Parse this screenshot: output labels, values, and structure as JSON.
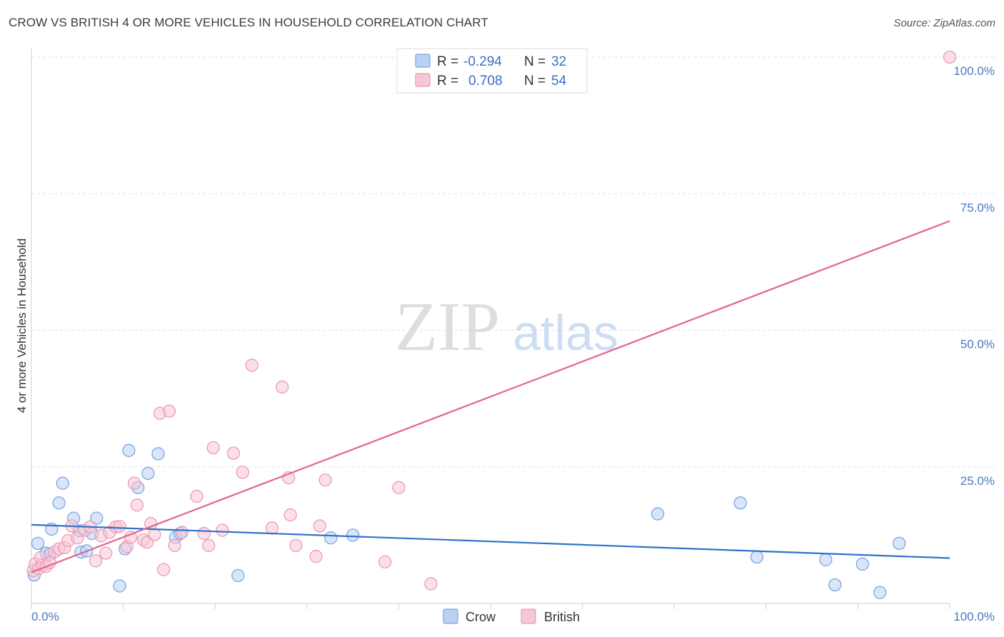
{
  "title": "CROW VS BRITISH 4 OR MORE VEHICLES IN HOUSEHOLD CORRELATION CHART",
  "source": "Source: ZipAtlas.com",
  "watermark": {
    "zip": "ZIP",
    "atlas": "atlas"
  },
  "legend": {
    "rows": [
      {
        "r_label": "R =",
        "r_value": "-0.294",
        "n_label": "N =",
        "n_value": "32"
      },
      {
        "r_label": "R =",
        "r_value": "0.708",
        "n_label": "N =",
        "n_value": "54"
      }
    ]
  },
  "bottom_legend": [
    "Crow",
    "British"
  ],
  "chart_data": {
    "type": "scatter",
    "title": "CROW VS BRITISH 4 OR MORE VEHICLES IN HOUSEHOLD CORRELATION CHART",
    "xlabel": "",
    "ylabel": "4 or more Vehicles in Household",
    "xlim": [
      0,
      100
    ],
    "ylim": [
      0,
      100
    ],
    "x_tick_labels": [
      {
        "value": 0,
        "label": "0.0%"
      },
      {
        "value": 100,
        "label": "100.0%"
      }
    ],
    "y_tick_labels": [
      {
        "value": 25,
        "label": "25.0%"
      },
      {
        "value": 50,
        "label": "50.0%"
      },
      {
        "value": 75,
        "label": "75.0%"
      },
      {
        "value": 100,
        "label": "100.0%"
      }
    ],
    "grid": true,
    "series": [
      {
        "name": "Crow",
        "color": "#7aa6e6",
        "fill": "#b9d1f3",
        "line_color": "#2f72c9",
        "trend": {
          "x": [
            0,
            100
          ],
          "y": [
            14.4,
            8.3
          ]
        },
        "points": [
          {
            "x": 0.3,
            "y": 5.2
          },
          {
            "x": 0.7,
            "y": 11.0
          },
          {
            "x": 1.6,
            "y": 9.2
          },
          {
            "x": 2.2,
            "y": 13.6
          },
          {
            "x": 3.0,
            "y": 18.4
          },
          {
            "x": 3.4,
            "y": 22.0
          },
          {
            "x": 4.6,
            "y": 15.6
          },
          {
            "x": 5.2,
            "y": 13.3
          },
          {
            "x": 5.4,
            "y": 9.4
          },
          {
            "x": 6.0,
            "y": 9.6
          },
          {
            "x": 6.6,
            "y": 12.8
          },
          {
            "x": 7.1,
            "y": 15.6
          },
          {
            "x": 9.6,
            "y": 3.2
          },
          {
            "x": 10.2,
            "y": 10.0
          },
          {
            "x": 10.6,
            "y": 28.0
          },
          {
            "x": 11.6,
            "y": 21.2
          },
          {
            "x": 12.7,
            "y": 23.8
          },
          {
            "x": 13.8,
            "y": 27.4
          },
          {
            "x": 15.7,
            "y": 12.1
          },
          {
            "x": 16.2,
            "y": 12.8
          },
          {
            "x": 22.5,
            "y": 5.1
          },
          {
            "x": 32.6,
            "y": 12.0
          },
          {
            "x": 35.0,
            "y": 12.5
          },
          {
            "x": 68.2,
            "y": 16.4
          },
          {
            "x": 77.2,
            "y": 18.4
          },
          {
            "x": 79.0,
            "y": 8.5
          },
          {
            "x": 86.5,
            "y": 8.0
          },
          {
            "x": 87.5,
            "y": 3.4
          },
          {
            "x": 90.5,
            "y": 7.2
          },
          {
            "x": 92.4,
            "y": 2.0
          },
          {
            "x": 94.5,
            "y": 11.0
          },
          {
            "x": 2.0,
            "y": 9.0
          }
        ]
      },
      {
        "name": "British",
        "color": "#ee9ab5",
        "fill": "#f7c6d5",
        "line_color": "#e0648f",
        "trend": {
          "x": [
            0,
            100
          ],
          "y": [
            5.7,
            70.0
          ]
        },
        "points": [
          {
            "x": 0.2,
            "y": 6.0
          },
          {
            "x": 0.4,
            "y": 7.2
          },
          {
            "x": 0.8,
            "y": 6.4
          },
          {
            "x": 1.0,
            "y": 8.4
          },
          {
            "x": 1.2,
            "y": 7.0
          },
          {
            "x": 1.6,
            "y": 6.8
          },
          {
            "x": 2.0,
            "y": 7.5
          },
          {
            "x": 2.5,
            "y": 9.4
          },
          {
            "x": 3.0,
            "y": 10.0
          },
          {
            "x": 3.6,
            "y": 10.2
          },
          {
            "x": 4.0,
            "y": 11.5
          },
          {
            "x": 4.4,
            "y": 14.2
          },
          {
            "x": 5.0,
            "y": 12.0
          },
          {
            "x": 5.8,
            "y": 13.4
          },
          {
            "x": 6.4,
            "y": 14.0
          },
          {
            "x": 7.0,
            "y": 7.8
          },
          {
            "x": 7.6,
            "y": 12.4
          },
          {
            "x": 8.1,
            "y": 9.2
          },
          {
            "x": 8.5,
            "y": 13.0
          },
          {
            "x": 9.2,
            "y": 14.0
          },
          {
            "x": 9.6,
            "y": 14.1
          },
          {
            "x": 10.4,
            "y": 10.4
          },
          {
            "x": 10.8,
            "y": 12.1
          },
          {
            "x": 11.2,
            "y": 22.0
          },
          {
            "x": 11.5,
            "y": 18.0
          },
          {
            "x": 12.2,
            "y": 11.6
          },
          {
            "x": 12.6,
            "y": 11.2
          },
          {
            "x": 13.0,
            "y": 14.6
          },
          {
            "x": 13.4,
            "y": 12.6
          },
          {
            "x": 14.0,
            "y": 34.8
          },
          {
            "x": 14.4,
            "y": 6.2
          },
          {
            "x": 15.0,
            "y": 35.2
          },
          {
            "x": 15.6,
            "y": 10.6
          },
          {
            "x": 16.4,
            "y": 13.0
          },
          {
            "x": 18.0,
            "y": 19.6
          },
          {
            "x": 18.8,
            "y": 12.8
          },
          {
            "x": 19.3,
            "y": 10.6
          },
          {
            "x": 19.8,
            "y": 28.5
          },
          {
            "x": 20.8,
            "y": 13.4
          },
          {
            "x": 22.0,
            "y": 27.5
          },
          {
            "x": 23.0,
            "y": 24.0
          },
          {
            "x": 24.0,
            "y": 43.6
          },
          {
            "x": 26.2,
            "y": 13.8
          },
          {
            "x": 27.3,
            "y": 39.6
          },
          {
            "x": 28.0,
            "y": 23.0
          },
          {
            "x": 28.2,
            "y": 16.2
          },
          {
            "x": 28.8,
            "y": 10.6
          },
          {
            "x": 31.0,
            "y": 8.6
          },
          {
            "x": 31.4,
            "y": 14.2
          },
          {
            "x": 32.0,
            "y": 22.6
          },
          {
            "x": 38.5,
            "y": 7.6
          },
          {
            "x": 40.0,
            "y": 21.2
          },
          {
            "x": 43.5,
            "y": 3.6
          },
          {
            "x": 100.0,
            "y": 100.0
          }
        ]
      }
    ]
  }
}
